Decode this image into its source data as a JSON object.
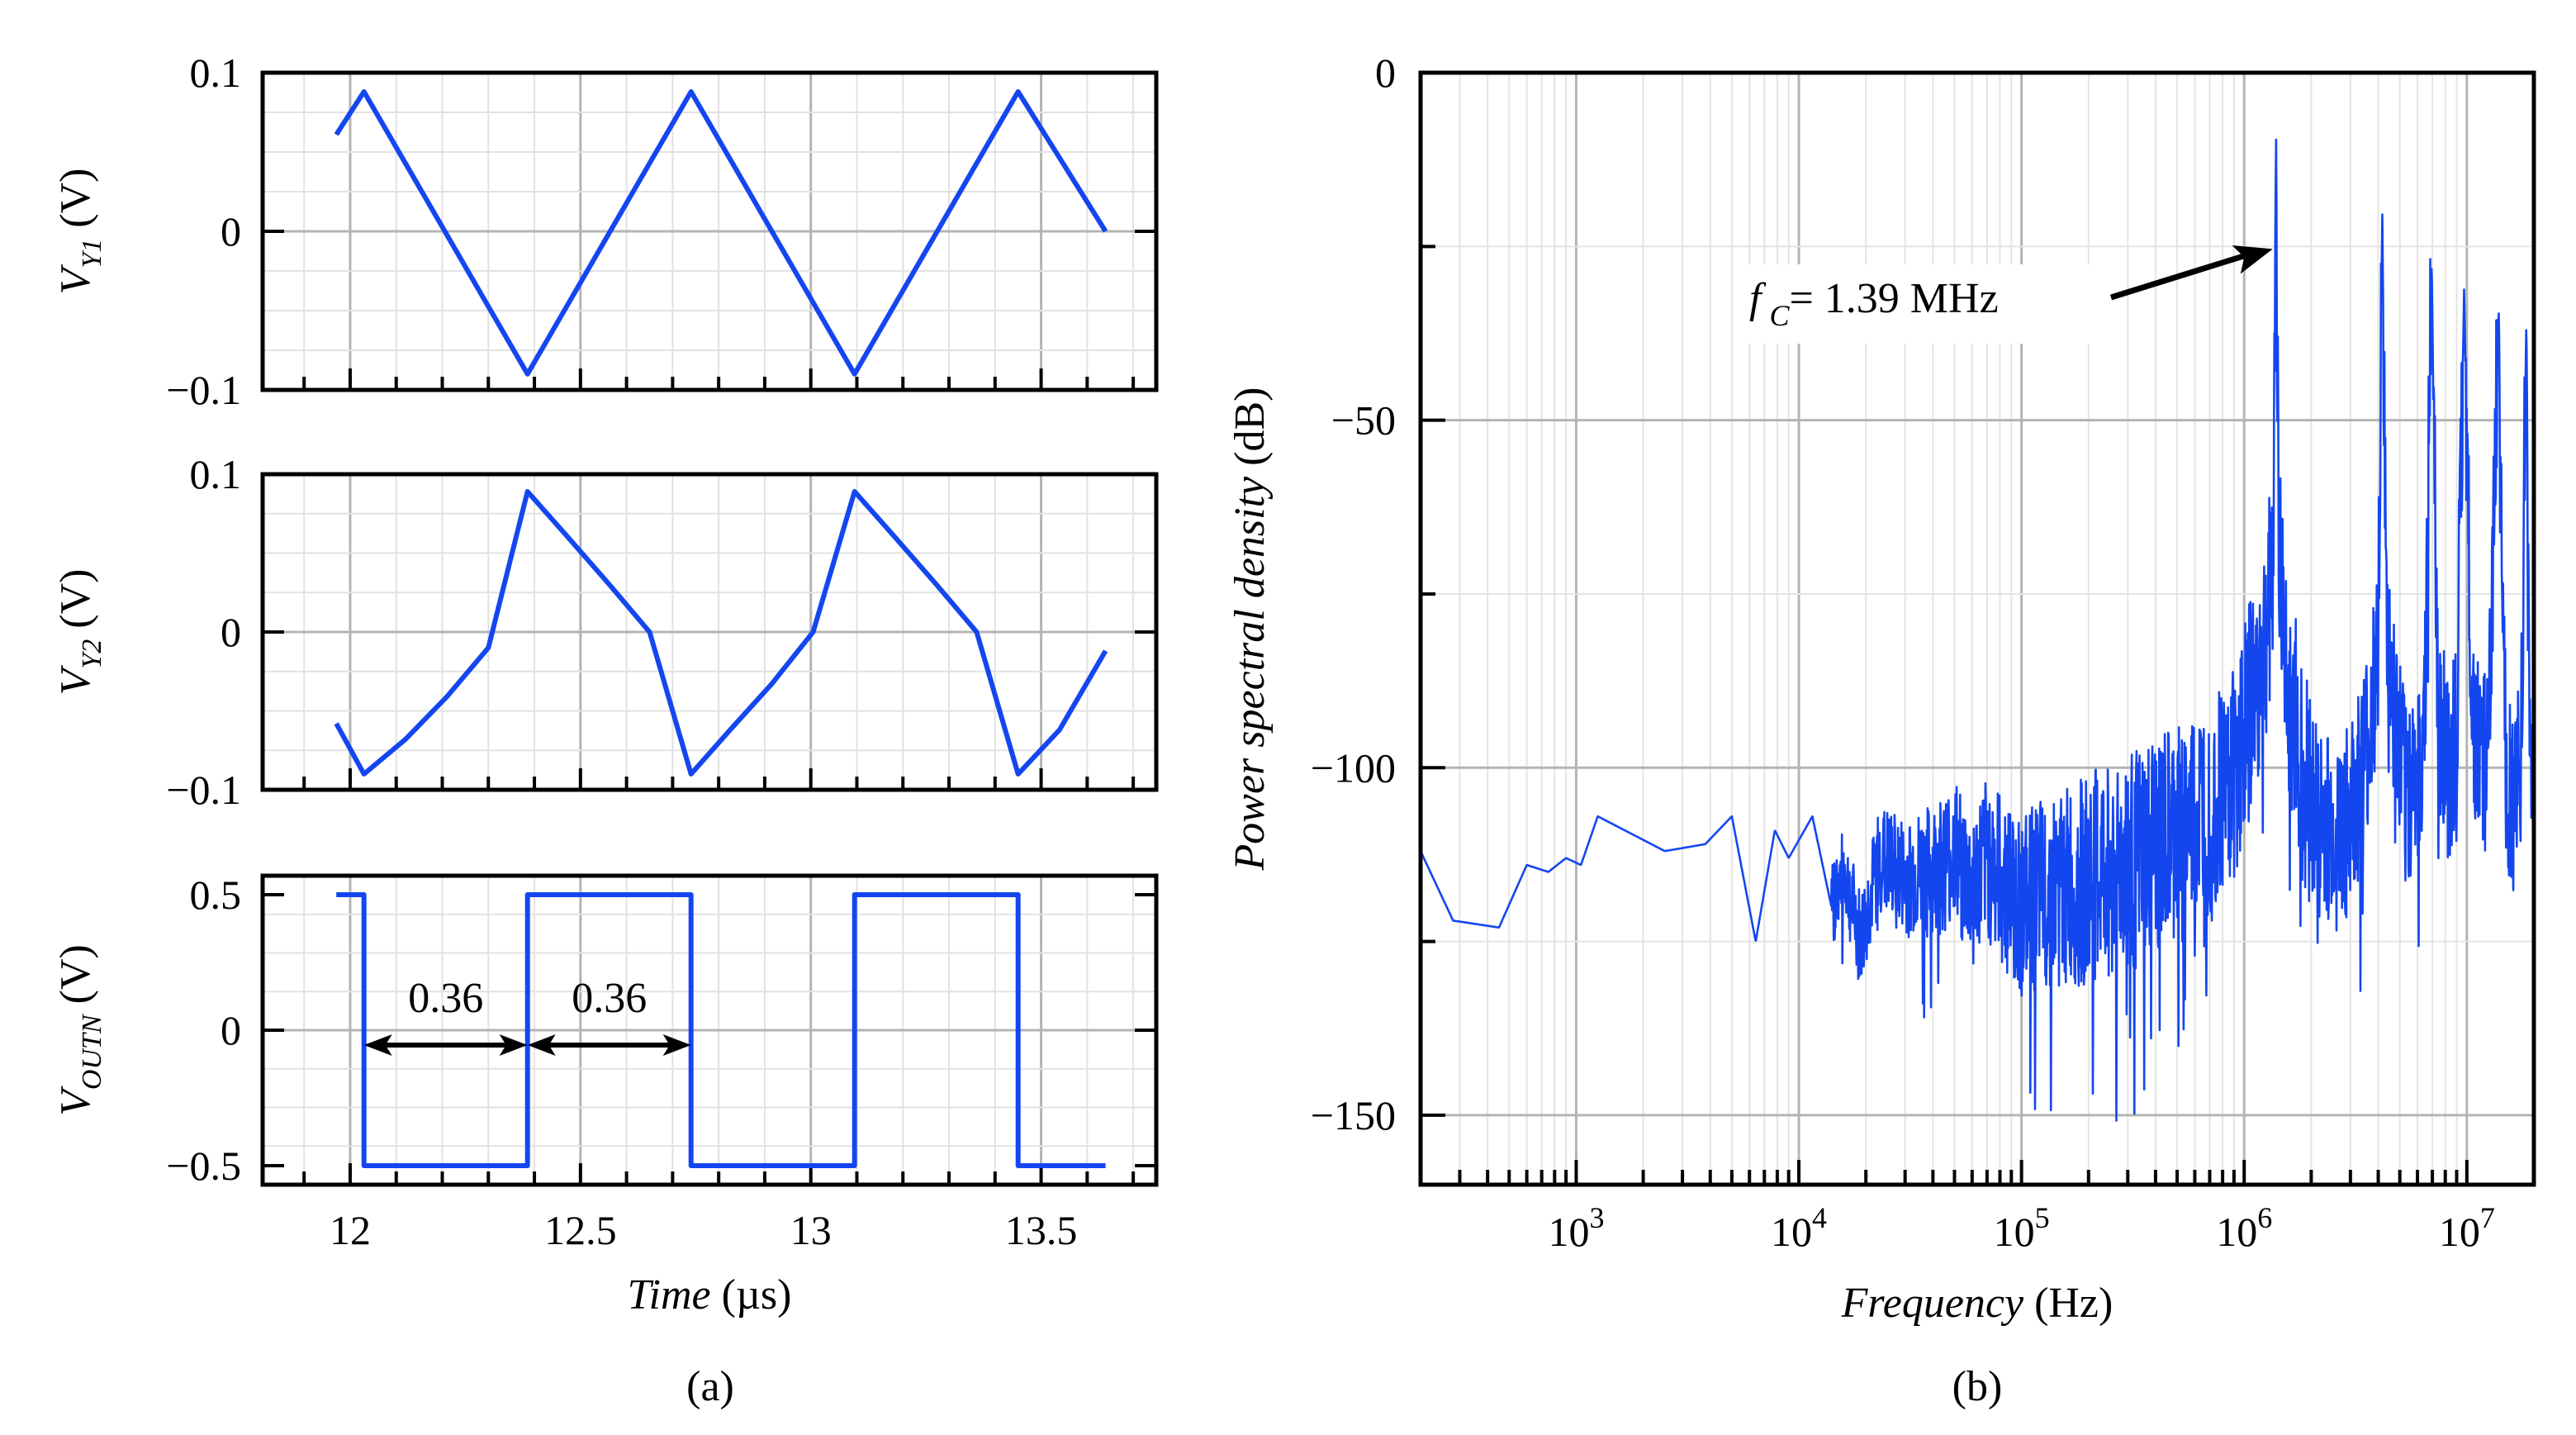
{
  "chart_data": [
    {
      "id": "vy1",
      "type": "line",
      "panel": "(a)",
      "ylabel": "V",
      "ylabel_sub": "Y1",
      "ylabel_unit": " (V)",
      "xlabel": "",
      "xlim": [
        11.81,
        13.75
      ],
      "ylim": [
        -0.1,
        0.1
      ],
      "yticks": [
        {
          "value": 0.1,
          "label": "0.1"
        },
        {
          "value": 0,
          "label": "0"
        },
        {
          "value": -0.1,
          "label": "−0.1"
        }
      ],
      "grid": true,
      "series": [
        {
          "name": "VY1",
          "color": "#1446f0",
          "x": [
            11.97,
            12.03,
            12.385,
            12.74,
            13.095,
            13.45,
            13.64
          ],
          "y": [
            0.061,
            0.088,
            -0.09,
            0.088,
            -0.09,
            0.088,
            0.0
          ]
        }
      ]
    },
    {
      "id": "vy2",
      "type": "line",
      "panel": "(a)",
      "ylabel": "V",
      "ylabel_sub": "Y2",
      "ylabel_unit": " (V)",
      "xlabel": "",
      "xlim": [
        11.81,
        13.75
      ],
      "ylim": [
        -0.1,
        0.1
      ],
      "yticks": [
        {
          "value": 0.1,
          "label": "0.1"
        },
        {
          "value": 0,
          "label": "0"
        },
        {
          "value": -0.1,
          "label": "−0.1"
        }
      ],
      "grid": true,
      "series": [
        {
          "name": "VY2",
          "color": "#1446f0",
          "x": [
            11.97,
            12.03,
            12.12,
            12.21,
            12.3,
            12.385,
            12.47,
            12.56,
            12.65,
            12.74,
            12.825,
            12.915,
            13.005,
            13.095,
            13.18,
            13.27,
            13.36,
            13.45,
            13.54,
            13.64
          ],
          "y": [
            -0.058,
            -0.09,
            -0.068,
            -0.041,
            -0.01,
            0.089,
            0.061,
            0.031,
            0.0,
            -0.09,
            -0.062,
            -0.033,
            0.0,
            0.089,
            0.061,
            0.031,
            0.0,
            -0.09,
            -0.062,
            -0.012
          ]
        }
      ]
    },
    {
      "id": "vout",
      "type": "line",
      "panel": "(a)",
      "ylabel": "V",
      "ylabel_sub": "OUTN",
      "ylabel_unit": " (V)",
      "xlabel": "Time",
      "xlabel_unit": " (µs)",
      "xlim": [
        11.81,
        13.75
      ],
      "ylim": [
        -0.57,
        0.57
      ],
      "yticks": [
        {
          "value": 0.5,
          "label": "0.5"
        },
        {
          "value": 0,
          "label": "0"
        },
        {
          "value": -0.5,
          "label": "−0.5"
        }
      ],
      "xticks": [
        {
          "value": 12,
          "label": "12"
        },
        {
          "value": 12.5,
          "label": "12.5"
        },
        {
          "value": 13,
          "label": "13"
        },
        {
          "value": 13.5,
          "label": "13.5"
        }
      ],
      "grid": true,
      "series": [
        {
          "name": "VOUTN",
          "color": "#1446f0",
          "x": [
            11.97,
            12.03,
            12.03,
            12.385,
            12.385,
            12.74,
            12.74,
            13.095,
            13.095,
            13.45,
            13.45,
            13.64
          ],
          "y": [
            0.5,
            0.5,
            -0.5,
            -0.5,
            0.5,
            0.5,
            -0.5,
            -0.5,
            0.5,
            0.5,
            -0.5,
            -0.5
          ]
        }
      ],
      "annotations": [
        {
          "text": "0.36",
          "x_from": 12.03,
          "x_to": 12.385,
          "y": 0.0
        },
        {
          "text": "0.36",
          "x_from": 12.385,
          "x_to": 12.74,
          "y": 0.0
        }
      ]
    },
    {
      "id": "psd",
      "type": "line",
      "panel": "(b)",
      "ylabel": "Power spectral density",
      "ylabel_unit": " (dB)",
      "xlabel": "Frequency",
      "xlabel_unit": " (Hz)",
      "xscale": "log",
      "xlim": [
        200,
        20000000
      ],
      "ylim": [
        -160,
        0
      ],
      "yticks": [
        {
          "value": 0,
          "label": "0"
        },
        {
          "value": -50,
          "label": "−50"
        },
        {
          "value": -100,
          "label": "−100"
        },
        {
          "value": -150,
          "label": "−150"
        }
      ],
      "xticks": [
        {
          "value": 1000,
          "base": "10",
          "exp": "3"
        },
        {
          "value": 10000,
          "base": "10",
          "exp": "4"
        },
        {
          "value": 100000,
          "base": "10",
          "exp": "5"
        },
        {
          "value": 1000000,
          "base": "10",
          "exp": "6"
        },
        {
          "value": 10000000,
          "base": "10",
          "exp": "7"
        }
      ],
      "grid": true,
      "series": [
        {
          "name": "PSD",
          "color": "#1446f0",
          "x": [
            200,
            280,
            450,
            600,
            750,
            900,
            1050,
            1250,
            2500,
            3800,
            5000,
            6400,
            7800,
            9000,
            11500,
            14000,
            16000,
            19000,
            23000,
            30000,
            40000,
            50000,
            60000,
            70000,
            85000,
            100000,
            130000,
            180000,
            250000,
            350000,
            500000,
            700000,
            900000,
            1100000,
            1250000,
            1350000,
            1390000,
            1430000,
            1550000,
            1800000,
            2200000,
            2700000,
            3200000,
            3700000,
            4000000,
            4170000,
            4350000,
            4800000,
            5400000,
            6000000,
            6500000,
            6950000,
            7400000,
            8200000,
            9000000,
            9720000,
            10500000,
            11300000,
            12500000,
            13900000,
            15000000,
            16000000,
            17500000,
            18500000,
            19300000,
            20000000
          ],
          "y": [
            -112,
            -122,
            -123,
            -114,
            -115,
            -113,
            -114,
            -107,
            -112,
            -111,
            -107,
            -125,
            -109,
            -113,
            -107,
            -120,
            -115,
            -125,
            -113,
            -116,
            -115,
            -112,
            -118,
            -113,
            -117,
            -120,
            -118,
            -117,
            -115,
            -113,
            -110,
            -105,
            -100,
            -90,
            -82,
            -70,
            -8,
            -70,
            -85,
            -100,
            -108,
            -110,
            -105,
            -95,
            -80,
            -20,
            -80,
            -95,
            -105,
            -100,
            -90,
            -27,
            -90,
            -100,
            -95,
            -31,
            -90,
            -100,
            -97,
            -34,
            -100,
            -105,
            -100,
            -35,
            -105,
            -110
          ]
        }
      ],
      "annotations": [
        {
          "text_var": "f",
          "text_sub": "C",
          "text_rest": "= 1.39 MHz",
          "x": 1390000,
          "y": -25
        }
      ]
    }
  ],
  "labels": {
    "panel_a": "(a)",
    "panel_b": "(b)"
  }
}
